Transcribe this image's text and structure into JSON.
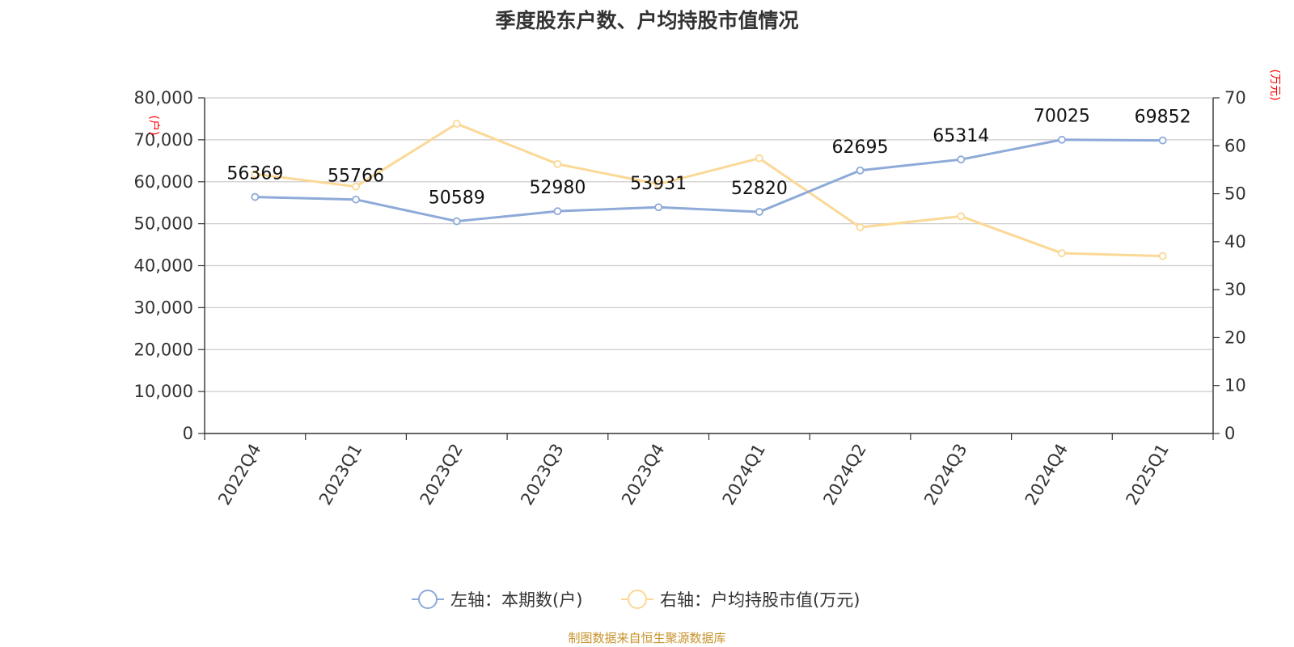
{
  "chart_data": {
    "type": "line",
    "title": "季度股东户数、户均持股市值情况",
    "categories": [
      "2022Q4",
      "2023Q1",
      "2023Q2",
      "2023Q3",
      "2023Q4",
      "2024Q1",
      "2024Q2",
      "2024Q3",
      "2024Q4",
      "2025Q1"
    ],
    "series": [
      {
        "name": "左轴：本期数(户)",
        "axis": "left",
        "color": "#8eaad8",
        "values": [
          56369,
          55766,
          50589,
          52980,
          53931,
          52820,
          62695,
          65314,
          70025,
          69852
        ],
        "data_labels": [
          "56369",
          "55766",
          "50589",
          "52980",
          "53931",
          "52820",
          "62695",
          "65314",
          "70025",
          "69852"
        ]
      },
      {
        "name": "右轴：户均持股市值(万元)",
        "axis": "right",
        "color": "#fbd896",
        "values": [
          54.1,
          51.5,
          64.6,
          56.2,
          52.0,
          57.4,
          43.0,
          45.3,
          37.6,
          37.0
        ]
      }
    ],
    "left_axis": {
      "unit": "(户)",
      "ylim": [
        0,
        80000
      ],
      "ticks": [
        0,
        10000,
        20000,
        30000,
        40000,
        50000,
        60000,
        70000,
        80000
      ],
      "tick_labels": [
        "0",
        "10,000",
        "20,000",
        "30,000",
        "40,000",
        "50,000",
        "60,000",
        "70,000",
        "80,000"
      ]
    },
    "right_axis": {
      "unit": "(万元)",
      "ylim": [
        0,
        70
      ],
      "ticks": [
        0,
        10,
        20,
        30,
        40,
        50,
        60,
        70
      ],
      "tick_labels": [
        "0",
        "10",
        "20",
        "30",
        "40",
        "50",
        "60",
        "70"
      ]
    },
    "grid": true,
    "legend_position": "bottom",
    "source": "制图数据来自恒生聚源数据库"
  }
}
